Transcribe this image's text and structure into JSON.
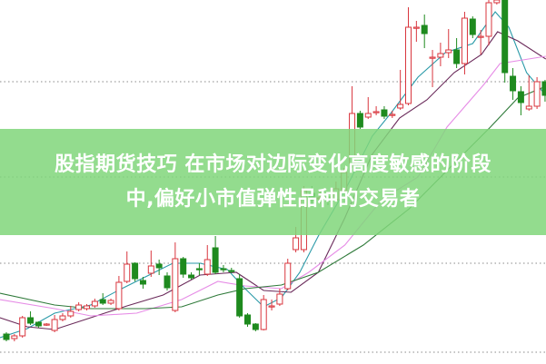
{
  "banner": {
    "line1": "股指期货技巧 在市场对边际变化高度敏感的阶段",
    "line2": "中,偏好小市值弹性品种的交易者",
    "background": "#80d67a"
  },
  "chart_data": {
    "type": "candlestick",
    "title": "",
    "grid": "dotted horizontal",
    "colors": {
      "up": "#d9363e",
      "down": "#1e8a1e",
      "grid": "#888888"
    },
    "ohlc": [
      [
        32,
        26,
        34,
        24
      ],
      [
        27,
        30,
        32,
        24
      ],
      [
        30,
        50,
        52,
        28
      ],
      [
        50,
        44,
        57,
        42
      ],
      [
        45,
        41,
        46,
        39
      ],
      [
        42,
        43,
        44,
        41
      ],
      [
        36,
        48,
        53,
        34
      ],
      [
        48,
        52,
        55,
        46
      ],
      [
        52,
        57,
        63,
        50
      ],
      [
        59,
        64,
        67,
        57
      ],
      [
        60,
        63,
        65,
        58
      ],
      [
        63,
        68,
        71,
        61
      ],
      [
        70,
        66,
        77,
        64
      ],
      [
        66,
        69,
        71,
        64
      ],
      [
        60,
        89,
        96,
        58
      ],
      [
        90,
        109,
        123,
        88
      ],
      [
        110,
        93,
        111,
        90
      ],
      [
        91,
        87,
        95,
        82
      ],
      [
        99,
        107,
        124,
        95
      ],
      [
        109,
        105,
        114,
        97
      ],
      [
        96,
        83,
        100,
        80
      ],
      [
        58,
        115,
        133,
        56
      ],
      [
        115,
        98,
        117,
        94
      ],
      [
        97,
        94,
        100,
        92
      ],
      [
        104,
        103,
        110,
        97
      ],
      [
        98,
        114,
        130,
        96
      ],
      [
        127,
        100,
        140,
        98
      ],
      [
        104,
        103,
        108,
        100
      ],
      [
        102,
        101,
        105,
        99
      ],
      [
        93,
        52,
        98,
        50
      ],
      [
        53,
        43,
        55,
        40
      ],
      [
        43,
        37,
        44,
        35
      ],
      [
        37,
        70,
        75,
        36
      ],
      [
        63,
        63,
        70,
        58
      ],
      [
        65,
        76,
        82,
        63
      ],
      [
        82,
        110,
        115,
        80
      ],
      [
        125,
        138,
        150,
        122
      ],
      [
        125,
        190,
        195,
        122
      ],
      [
        187,
        180,
        195,
        174
      ],
      [
        182,
        182,
        190,
        176
      ],
      [
        183,
        179,
        188,
        174
      ],
      [
        180,
        192,
        200,
        178
      ],
      [
        190,
        210,
        215,
        188
      ],
      [
        220,
        275,
        305,
        215
      ],
      [
        275,
        260,
        278,
        258
      ],
      [
        271,
        275,
        293,
        269
      ],
      [
        277,
        277,
        283,
        273
      ],
      [
        279,
        272,
        283,
        269
      ],
      [
        274,
        274,
        278,
        270
      ],
      [
        281,
        285,
        323,
        279
      ],
      [
        286,
        370,
        392,
        284
      ],
      [
        370,
        370,
        377,
        354
      ],
      [
        372,
        363,
        384,
        347
      ],
      [
        337,
        337,
        345,
        304
      ],
      [
        337,
        341,
        353,
        327
      ],
      [
        342,
        345,
        368,
        336
      ],
      [
        345,
        330,
        358,
        325
      ],
      [
        330,
        380,
        387,
        318
      ],
      [
        379,
        362,
        382,
        358
      ],
      [
        360,
        360,
        367,
        340
      ],
      [
        360,
        397,
        400,
        350
      ],
      [
        397,
        400,
        402,
        395
      ],
      [
        400,
        320,
        405,
        309
      ],
      [
        316,
        300,
        325,
        290
      ],
      [
        299,
        287,
        305,
        273
      ],
      [
        280,
        283,
        317,
        278
      ],
      [
        283,
        310,
        315,
        280
      ],
      [
        310,
        295,
        312,
        288
      ]
    ],
    "moving_averages": [
      {
        "color": "#2a9aa8",
        "points": [
          [
            -0.8,
            28
          ],
          [
            2.6,
            38
          ],
          [
            6,
            55
          ],
          [
            10.5,
            64
          ],
          [
            13.9,
            80
          ],
          [
            17.3,
            95
          ],
          [
            20.7,
            110
          ],
          [
            24.1,
            110
          ],
          [
            27.5,
            103
          ],
          [
            29.7,
            82
          ],
          [
            32,
            62
          ],
          [
            34.2,
            72
          ],
          [
            36.5,
            100
          ],
          [
            38.8,
            140
          ],
          [
            42.1,
            190
          ],
          [
            45.5,
            250
          ],
          [
            47.8,
            275
          ],
          [
            51.2,
            315
          ],
          [
            54.6,
            342
          ],
          [
            58,
            352
          ],
          [
            60.8,
            387
          ],
          [
            62.5,
            370
          ],
          [
            64.7,
            320
          ],
          [
            67.1,
            295
          ]
        ]
      },
      {
        "color": "#6a2a5a",
        "points": [
          [
            -0.8,
            50
          ],
          [
            2.6,
            40
          ],
          [
            6,
            37
          ],
          [
            10.5,
            50
          ],
          [
            15,
            63
          ],
          [
            19.5,
            75
          ],
          [
            24.1,
            97
          ],
          [
            28.6,
            100
          ],
          [
            32,
            80
          ],
          [
            35.4,
            78
          ],
          [
            38.8,
            100
          ],
          [
            42.1,
            160
          ],
          [
            45.5,
            230
          ],
          [
            48.9,
            270
          ],
          [
            52.3,
            290
          ],
          [
            55.7,
            320
          ],
          [
            59.1,
            340
          ],
          [
            61.1,
            365
          ],
          [
            63.6,
            355
          ],
          [
            67.1,
            335
          ]
        ]
      },
      {
        "color": "#e68ce6",
        "points": [
          [
            -0.8,
            70
          ],
          [
            6,
            60
          ],
          [
            10.5,
            52
          ],
          [
            16.2,
            55
          ],
          [
            21.8,
            70
          ],
          [
            26.3,
            90
          ],
          [
            29.7,
            85
          ],
          [
            34.2,
            82
          ],
          [
            37.6,
            100
          ],
          [
            42.1,
            130
          ],
          [
            46.7,
            180
          ],
          [
            51.2,
            205
          ],
          [
            54.8,
            260
          ],
          [
            59.4,
            307
          ],
          [
            61.4,
            330
          ],
          [
            67.1,
            338
          ]
        ]
      },
      {
        "color": "#2f7a3a",
        "points": [
          [
            -0.8,
            77
          ],
          [
            6,
            64
          ],
          [
            10.5,
            60
          ],
          [
            17.3,
            60
          ],
          [
            21.8,
            62
          ],
          [
            26.3,
            75
          ],
          [
            29.7,
            82
          ],
          [
            34.2,
            86
          ],
          [
            38.8,
            100
          ],
          [
            44.4,
            130
          ],
          [
            50.1,
            170
          ],
          [
            55.7,
            220
          ],
          [
            60.2,
            260
          ],
          [
            63.6,
            292
          ],
          [
            67.1,
            305
          ]
        ]
      }
    ],
    "gridlines": [
      310,
      205,
      110,
      12
    ]
  }
}
